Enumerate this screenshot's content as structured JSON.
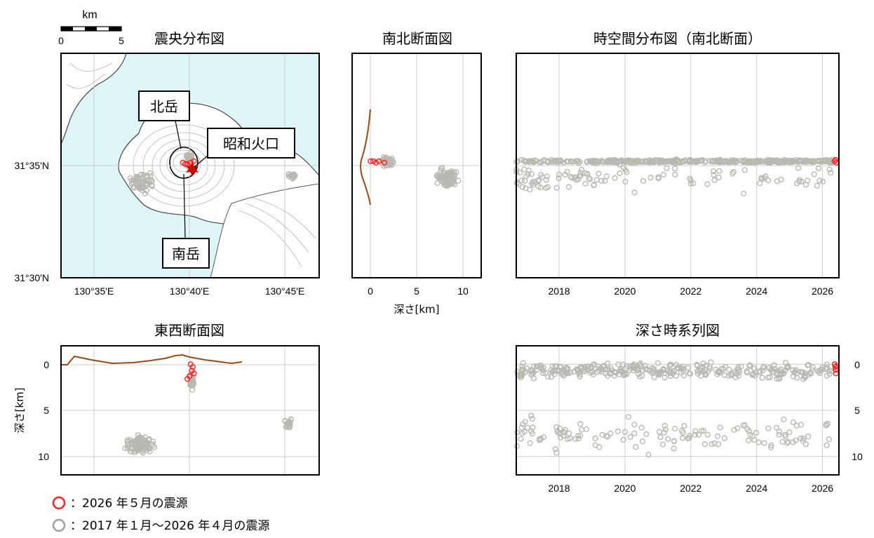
{
  "scalebar": {
    "unit": "km",
    "ticks": [
      "0",
      "5"
    ]
  },
  "colors": {
    "gray_marker": "#b9b9b2",
    "red_marker": "#ff2020",
    "topo_line": "#9a4a14",
    "sea": "#dff6f8",
    "grid": "#cccccc"
  },
  "legend": [
    {
      "marker_color": "#ff2020",
      "text": "：2026 年５月の震源"
    },
    {
      "marker_color": "#a0a0a0",
      "text": "：2017 年１月～2026 年４月の震源"
    }
  ],
  "chart_data": [
    {
      "id": "epicenter_map",
      "type": "scatter",
      "title": "震央分布図",
      "x_ticks": [
        "130°35'E",
        "130°40'E",
        "130°45'E"
      ],
      "y_ticks": [
        "31°35'N",
        "31°30'N"
      ],
      "xlim": [
        130.55,
        130.783
      ],
      "ylim": [
        31.5,
        31.656
      ],
      "grid": true,
      "annotations": [
        "北岳",
        "昭和火口",
        "南岳"
      ],
      "crater_marker": {
        "lon": 130.668,
        "lat": 31.58
      },
      "series": [
        {
          "clusters": [
            {
              "lon": 130.623,
              "lat": 31.566,
              "spread_lon": 0.014,
              "spread_lat": 0.008,
              "n": 60
            },
            {
              "lon": 130.666,
              "lat": 31.582,
              "spread_lon": 0.004,
              "spread_lat": 0.007,
              "n": 40
            },
            {
              "lon": 130.76,
              "lat": 31.571,
              "spread_lon": 0.006,
              "spread_lat": 0.003,
              "n": 15
            }
          ]
        },
        {
          "points": [
            [
              130.66,
              31.58
            ],
            [
              130.664,
              31.579
            ],
            [
              130.667,
              31.58
            ],
            [
              130.67,
              31.581
            ],
            [
              130.662,
              31.579
            ]
          ]
        }
      ]
    },
    {
      "id": "ns_section",
      "type": "scatter",
      "title": "南北断面図",
      "xlabel": "深さ[km]",
      "x_ticks": [
        "0",
        "5",
        "10"
      ],
      "xlim": [
        -2,
        12
      ],
      "grid": true,
      "series": [
        {
          "clusters": [
            {
              "depth": 1.8,
              "lat": 31.581,
              "spread_depth": 1.0,
              "spread_lat": 0.004,
              "n": 45
            },
            {
              "depth": 8.3,
              "lat": 31.569,
              "spread_depth": 1.4,
              "spread_lat": 0.008,
              "n": 90
            }
          ]
        },
        {
          "points": [
            [
              0.0,
              31.581
            ],
            [
              0.3,
              31.581
            ],
            [
              0.6,
              31.58
            ],
            [
              0.9,
              31.581
            ],
            [
              1.5,
              31.58
            ]
          ]
        }
      ]
    },
    {
      "id": "ew_section",
      "type": "scatter",
      "title": "東西断面図",
      "ylabel": "深さ[km]",
      "y_ticks": [
        "0",
        "5",
        "10"
      ],
      "ylim": [
        12,
        -2
      ],
      "grid": true,
      "series": [
        {
          "clusters": [
            {
              "lon": 130.622,
              "depth": 8.7,
              "spread_lon": 0.017,
              "spread_depth": 1.2,
              "n": 100
            },
            {
              "lon": 130.668,
              "depth": 1.8,
              "spread_lon": 0.003,
              "spread_depth": 1.1,
              "n": 40
            },
            {
              "lon": 130.755,
              "depth": 6.5,
              "spread_lon": 0.005,
              "spread_depth": 0.8,
              "n": 22
            }
          ]
        },
        {
          "points": [
            [
              130.667,
              0.0
            ],
            [
              130.669,
              0.3
            ],
            [
              130.668,
              0.7
            ],
            [
              130.67,
              1.0
            ],
            [
              130.666,
              1.3
            ],
            [
              130.664,
              1.6
            ]
          ]
        }
      ]
    },
    {
      "id": "spacetime_ns",
      "type": "scatter",
      "title": "時空間分布図（南北断面）",
      "x_ticks": [
        "2018",
        "2020",
        "2022",
        "2024",
        "2026"
      ],
      "xlim": [
        2016.7,
        2026.5
      ],
      "grid": true,
      "series": [
        {
          "bands": [
            {
              "lat": 31.581,
              "spread_lat": 0.0015,
              "density": "high"
            },
            {
              "lat": 31.57,
              "spread_lat": 0.012,
              "density": "scattered"
            }
          ]
        },
        {
          "points": [
            [
              2026.37,
              31.581
            ],
            [
              2026.4,
              31.582
            ],
            [
              2026.42,
              31.58
            ]
          ]
        }
      ]
    },
    {
      "id": "depth_timeseries",
      "type": "scatter",
      "title": "深さ時系列図",
      "x_ticks": [
        "2018",
        "2020",
        "2022",
        "2024",
        "2026"
      ],
      "y_ticks": [
        "0",
        "5",
        "10"
      ],
      "xlim": [
        2016.7,
        2026.5
      ],
      "ylim": [
        12,
        -2
      ],
      "grid": true,
      "series": [
        {
          "bands": [
            {
              "depth": 0.6,
              "spread_depth": 1.0,
              "density": "high"
            },
            {
              "depth": 7.5,
              "spread_depth": 2.5,
              "density": "scattered"
            }
          ]
        },
        {
          "points": [
            [
              2026.37,
              0.0
            ],
            [
              2026.39,
              0.3
            ],
            [
              2026.4,
              0.6
            ],
            [
              2026.41,
              1.0
            ],
            [
              2026.42,
              0.2
            ]
          ]
        }
      ]
    }
  ]
}
